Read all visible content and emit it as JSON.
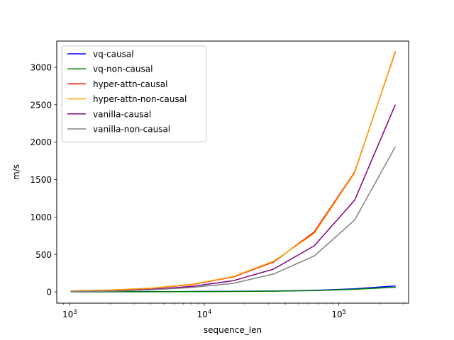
{
  "chart_data": {
    "type": "line",
    "xlabel": "sequence_len",
    "ylabel": "m/s",
    "xscale": "log",
    "xlim": [
      800,
      330000
    ],
    "ylim": [
      -150,
      3350
    ],
    "grid": false,
    "legend_position": "top-left",
    "x": [
      1024,
      2048,
      4096,
      8192,
      16384,
      32768,
      65536,
      131072,
      262144
    ],
    "x_ticks": [
      {
        "value": 1000,
        "base": "10",
        "exp": "3"
      },
      {
        "value": 10000,
        "base": "10",
        "exp": "4"
      },
      {
        "value": 100000,
        "base": "10",
        "exp": "5"
      }
    ],
    "y_ticks": [
      0,
      500,
      1000,
      1500,
      2000,
      2500,
      3000
    ],
    "series": [
      {
        "name": "vq-causal",
        "color": "#0000ff",
        "values": [
          2,
          3,
          4,
          6,
          8,
          12,
          22,
          42,
          80
        ]
      },
      {
        "name": "vq-non-causal",
        "color": "#008000",
        "values": [
          1,
          2,
          3,
          4,
          6,
          10,
          18,
          35,
          62
        ]
      },
      {
        "name": "hyper-attn-causal",
        "color": "#ff0000",
        "values": [
          12,
          25,
          50,
          100,
          200,
          400,
          800,
          1600,
          3200
        ]
      },
      {
        "name": "hyper-attn-non-causal",
        "color": "#ffa500",
        "values": [
          13,
          26,
          52,
          104,
          205,
          410,
          780,
          1590,
          3210
        ]
      },
      {
        "name": "vanilla-causal",
        "color": "#800080",
        "values": [
          5,
          12,
          35,
          75,
          150,
          305,
          615,
          1225,
          2495
        ]
      },
      {
        "name": "vanilla-non-causal",
        "color": "#808080",
        "values": [
          4,
          10,
          28,
          60,
          115,
          240,
          480,
          960,
          1935
        ]
      }
    ]
  }
}
